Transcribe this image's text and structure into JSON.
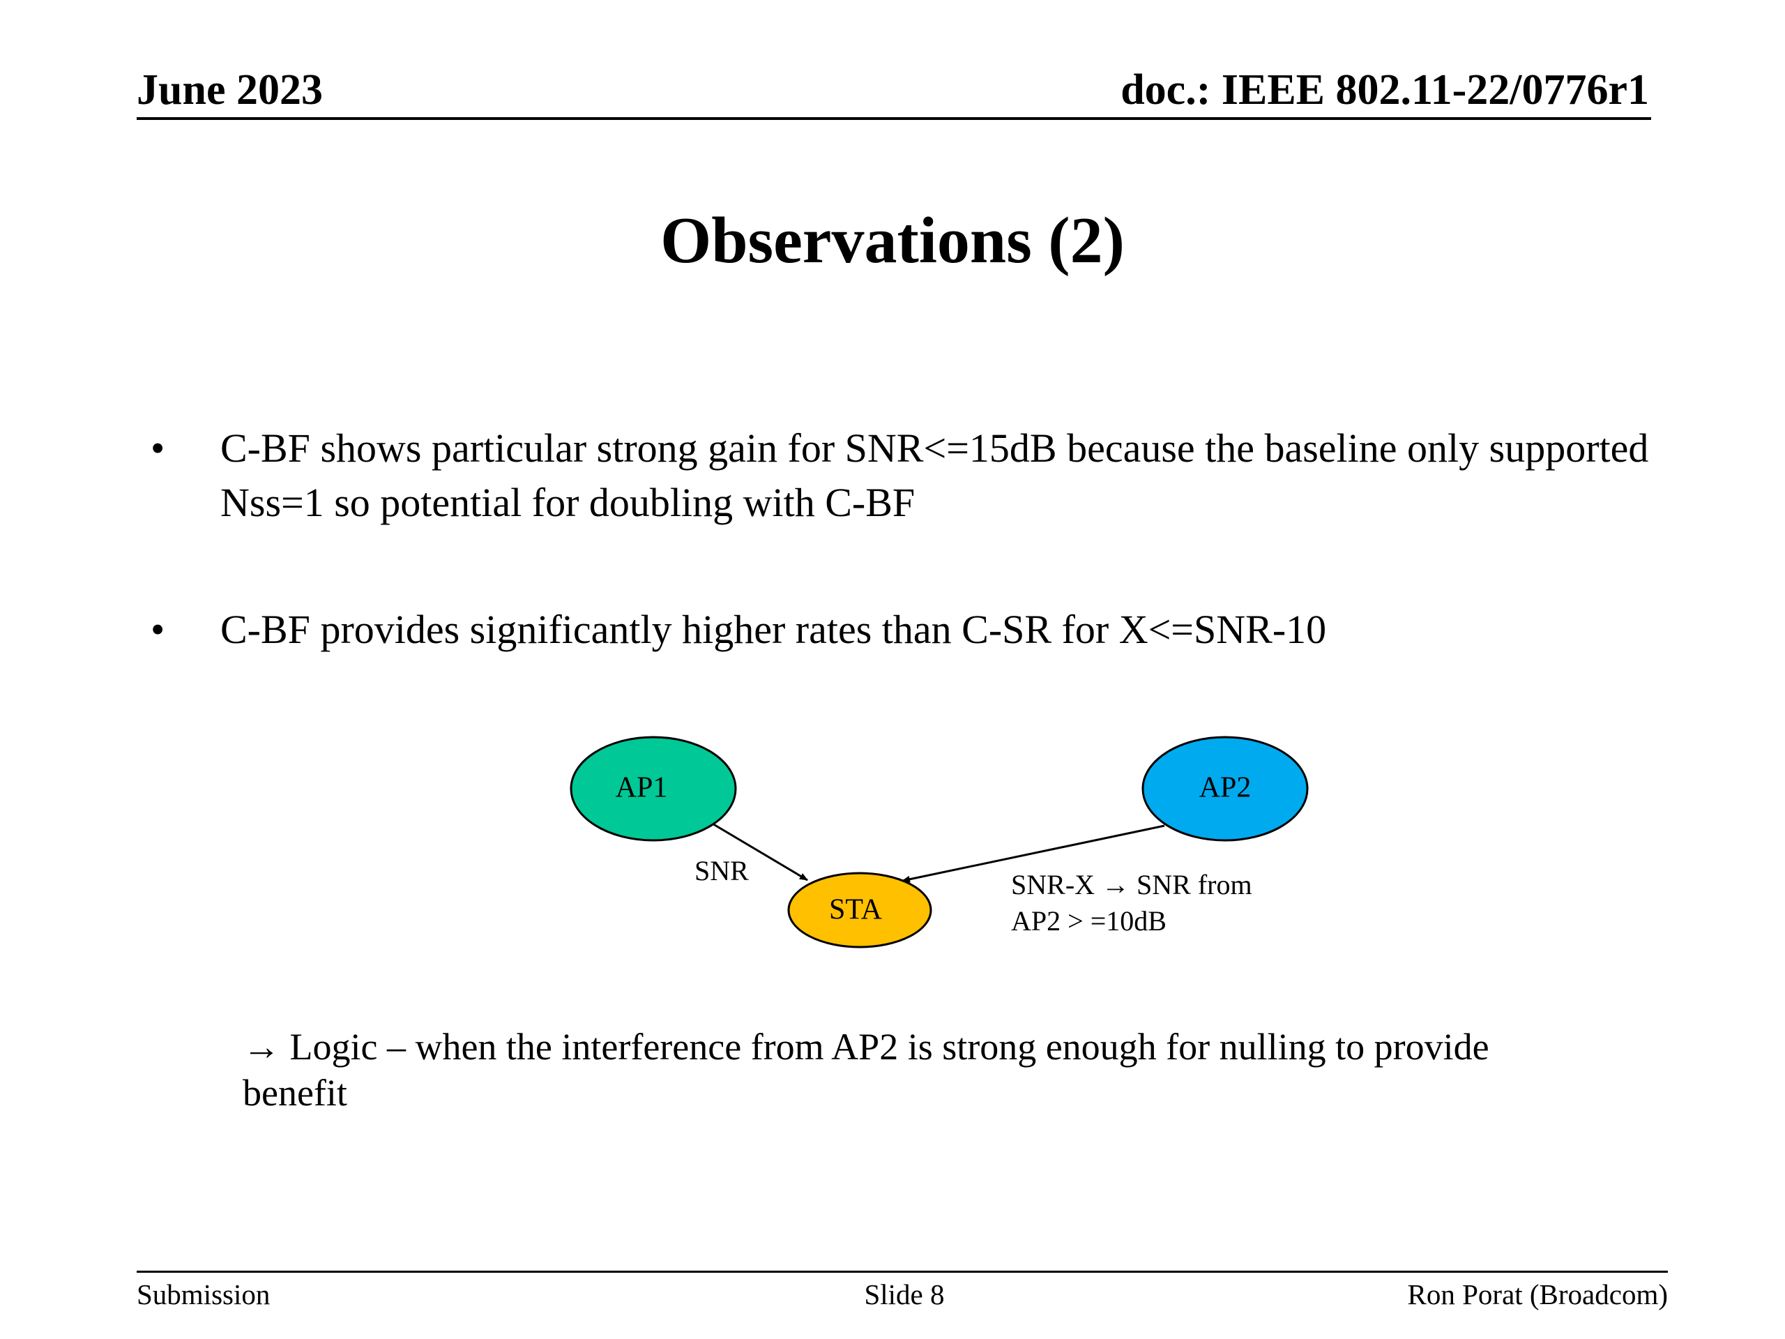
{
  "header": {
    "date": "June 2023",
    "doc": "doc.: IEEE 802.11-22/0776r1"
  },
  "title": "Observations (2)",
  "bullets": [
    {
      "marker": "•",
      "text": "C-BF shows particular strong gain for SNR<=15dB because the baseline only supported Nss=1 so potential for doubling with C-BF"
    },
    {
      "marker": "•",
      "text": "C-BF provides significantly higher rates than C-SR for X<=SNR-10"
    }
  ],
  "diagram": {
    "nodes": {
      "ap1": {
        "label": "AP1",
        "color": "#00c896"
      },
      "ap2": {
        "label": "AP2",
        "color": "#00aaee"
      },
      "sta": {
        "label": "STA",
        "color": "#ffc000"
      }
    },
    "edge_ap1_label": "SNR",
    "edge_ap2_label_line1": "SNR-X → SNR from",
    "edge_ap2_label_line2": "AP2 > =10dB"
  },
  "logic_text": "→ Logic – when the interference from AP2 is strong enough for nulling to provide benefit",
  "footer": {
    "left": "Submission",
    "center": "Slide 8",
    "right": "Ron Porat (Broadcom)"
  }
}
